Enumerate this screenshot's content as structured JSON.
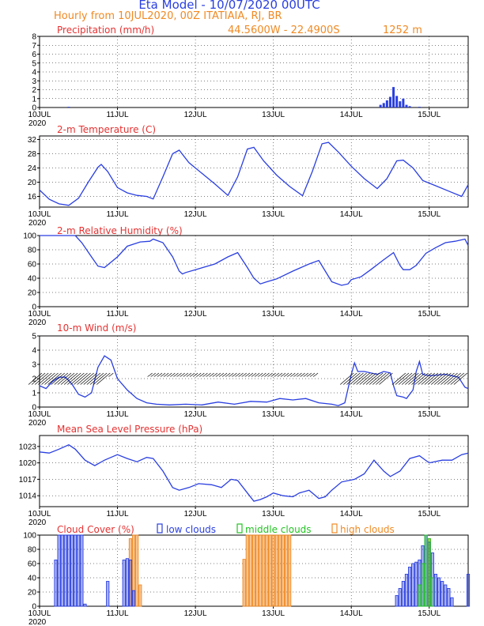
{
  "header": {
    "model_title": "Eta Model - 10/07/2020 00UTC",
    "subtitle": "Hourly from 10JUL2020, 00Z  ITATIAIA, RJ, BR",
    "coords": "44.5600W - 22.4900S",
    "elevation": "1252  m"
  },
  "colors": {
    "blue": "#2a3fe0",
    "red": "#e53232",
    "orange": "#f08a24",
    "green": "#22c322",
    "navy": "#1c2f8a"
  },
  "x_axis": {
    "day_labels": [
      "10JUL",
      "11JUL",
      "12JUL",
      "13JUL",
      "14JUL",
      "15JUL"
    ],
    "year_label": "2020",
    "hours_range": [
      0,
      132
    ]
  },
  "chart_data": [
    {
      "id": "precip",
      "type": "bar",
      "title": "Precipitation (mm/h)",
      "ylim": [
        0,
        8
      ],
      "yticks": [
        0,
        1,
        2,
        3,
        4,
        5,
        6,
        7,
        8
      ],
      "hours": [
        9,
        105,
        106,
        107,
        108,
        109,
        110,
        111,
        112,
        113,
        114,
        117
      ],
      "values": [
        0.08,
        0.3,
        0.5,
        0.8,
        1.2,
        2.3,
        1.3,
        0.7,
        1.0,
        0.3,
        0.15,
        0.08
      ]
    },
    {
      "id": "temp",
      "type": "line",
      "title": "2-m Temperature (C)",
      "ylim": [
        13,
        33
      ],
      "yticks": [
        16,
        20,
        24,
        28,
        32
      ],
      "points": [
        [
          0,
          17.8
        ],
        [
          3,
          15.2
        ],
        [
          6,
          13.9
        ],
        [
          9,
          13.5
        ],
        [
          12,
          15.5
        ],
        [
          15,
          20
        ],
        [
          18,
          24.2
        ],
        [
          19,
          25
        ],
        [
          21,
          23
        ],
        [
          24,
          18.5
        ],
        [
          27,
          17
        ],
        [
          30,
          16.3
        ],
        [
          33,
          16
        ],
        [
          35,
          15.3
        ],
        [
          38,
          21.5
        ],
        [
          41,
          28
        ],
        [
          43,
          29
        ],
        [
          46,
          25.5
        ],
        [
          50,
          22.5
        ],
        [
          54,
          19.5
        ],
        [
          58,
          16.3
        ],
        [
          61,
          21.5
        ],
        [
          64,
          29.3
        ],
        [
          66,
          29.8
        ],
        [
          69,
          26
        ],
        [
          73,
          22
        ],
        [
          77,
          18.8
        ],
        [
          81,
          16.2
        ],
        [
          84,
          23
        ],
        [
          87,
          30.8
        ],
        [
          89,
          31.2
        ],
        [
          92,
          28.5
        ],
        [
          96,
          24.5
        ],
        [
          100,
          21
        ],
        [
          104,
          18.2
        ],
        [
          107,
          21
        ],
        [
          110,
          26
        ],
        [
          112,
          26.2
        ],
        [
          115,
          24
        ],
        [
          118,
          20.5
        ],
        [
          122,
          19
        ],
        [
          126,
          17.5
        ],
        [
          130,
          16
        ],
        [
          132,
          19.3
        ]
      ]
    },
    {
      "id": "rh",
      "type": "line",
      "title": "2-m Relative Humidity (%)",
      "ylim": [
        0,
        100
      ],
      "yticks": [
        0,
        20,
        40,
        60,
        80,
        100
      ],
      "points": [
        [
          0,
          100
        ],
        [
          11,
          100
        ],
        [
          13,
          90
        ],
        [
          16,
          70
        ],
        [
          18,
          57
        ],
        [
          20,
          55
        ],
        [
          24,
          70
        ],
        [
          27,
          85
        ],
        [
          31,
          91
        ],
        [
          34,
          92
        ],
        [
          35,
          95
        ],
        [
          38,
          90
        ],
        [
          41,
          70
        ],
        [
          43,
          50
        ],
        [
          44,
          46
        ],
        [
          45,
          48
        ],
        [
          48,
          52
        ],
        [
          54,
          60
        ],
        [
          58,
          70
        ],
        [
          61,
          76
        ],
        [
          64,
          55
        ],
        [
          66,
          40
        ],
        [
          68,
          32
        ],
        [
          70,
          35
        ],
        [
          73,
          39
        ],
        [
          78,
          50
        ],
        [
          83,
          60
        ],
        [
          86,
          65
        ],
        [
          88,
          50
        ],
        [
          90,
          35
        ],
        [
          93,
          30
        ],
        [
          95,
          32
        ],
        [
          96,
          38
        ],
        [
          99,
          42
        ],
        [
          102,
          52
        ],
        [
          106,
          66
        ],
        [
          109,
          76
        ],
        [
          111,
          58
        ],
        [
          112,
          52
        ],
        [
          114,
          52
        ],
        [
          116,
          58
        ],
        [
          119,
          75
        ],
        [
          122,
          83
        ],
        [
          125,
          90
        ],
        [
          128,
          92
        ],
        [
          131,
          95
        ],
        [
          132,
          86
        ]
      ]
    },
    {
      "id": "wind",
      "type": "line",
      "title": "10-m Wind (m/s)",
      "ylim": [
        0,
        5
      ],
      "yticks": [
        0,
        1,
        2,
        3,
        4,
        5
      ],
      "points": [
        [
          0,
          1.5
        ],
        [
          2,
          1.3
        ],
        [
          4,
          1.8
        ],
        [
          6,
          2.1
        ],
        [
          8,
          2.1
        ],
        [
          10,
          1.6
        ],
        [
          12,
          0.9
        ],
        [
          14,
          0.7
        ],
        [
          16,
          1.0
        ],
        [
          18,
          2.8
        ],
        [
          20,
          3.6
        ],
        [
          22,
          3.3
        ],
        [
          24,
          2.0
        ],
        [
          27,
          1.2
        ],
        [
          30,
          0.6
        ],
        [
          33,
          0.3
        ],
        [
          36,
          0.2
        ],
        [
          40,
          0.15
        ],
        [
          45,
          0.2
        ],
        [
          50,
          0.15
        ],
        [
          55,
          0.35
        ],
        [
          60,
          0.2
        ],
        [
          65,
          0.4
        ],
        [
          70,
          0.35
        ],
        [
          74,
          0.6
        ],
        [
          78,
          0.5
        ],
        [
          82,
          0.6
        ],
        [
          86,
          0.3
        ],
        [
          90,
          0.2
        ],
        [
          92,
          0.1
        ],
        [
          94,
          0.3
        ],
        [
          96,
          2.3
        ],
        [
          97,
          3.1
        ],
        [
          98,
          2.5
        ],
        [
          100,
          2.5
        ],
        [
          104,
          2.3
        ],
        [
          106,
          2.5
        ],
        [
          108,
          2.4
        ],
        [
          109,
          1.5
        ],
        [
          110,
          0.8
        ],
        [
          112,
          0.7
        ],
        [
          113,
          0.6
        ],
        [
          115,
          1.2
        ],
        [
          116,
          2.5
        ],
        [
          117,
          3.2
        ],
        [
          118,
          2.3
        ],
        [
          120,
          2.2
        ],
        [
          125,
          2.3
        ],
        [
          129,
          2.1
        ],
        [
          131,
          1.4
        ],
        [
          132,
          1.3
        ]
      ]
    },
    {
      "id": "mslp",
      "type": "line",
      "title": "Mean Sea Level Pressure (hPa)",
      "ylim": [
        1012,
        1025
      ],
      "yticks": [
        1014,
        1017,
        1020,
        1023
      ],
      "points": [
        [
          0,
          1022
        ],
        [
          3,
          1021.8
        ],
        [
          6,
          1022.5
        ],
        [
          9,
          1023.3
        ],
        [
          11,
          1022.5
        ],
        [
          14,
          1020.5
        ],
        [
          17,
          1019.5
        ],
        [
          20,
          1020.5
        ],
        [
          24,
          1021.5
        ],
        [
          27,
          1020.8
        ],
        [
          30,
          1020.2
        ],
        [
          33,
          1021
        ],
        [
          35,
          1020.8
        ],
        [
          38,
          1018.5
        ],
        [
          41,
          1015.5
        ],
        [
          43,
          1015
        ],
        [
          46,
          1015.5
        ],
        [
          49,
          1016.2
        ],
        [
          53,
          1016
        ],
        [
          56,
          1015.5
        ],
        [
          59,
          1017
        ],
        [
          61,
          1016.8
        ],
        [
          64,
          1014.5
        ],
        [
          66,
          1013
        ],
        [
          68,
          1013.3
        ],
        [
          70,
          1013.8
        ],
        [
          72,
          1014.5
        ],
        [
          75,
          1014
        ],
        [
          78,
          1013.8
        ],
        [
          80,
          1014.5
        ],
        [
          83,
          1015
        ],
        [
          86,
          1013.5
        ],
        [
          88,
          1013.8
        ],
        [
          90,
          1015
        ],
        [
          93,
          1016.5
        ],
        [
          97,
          1017
        ],
        [
          100,
          1018
        ],
        [
          103,
          1020.5
        ],
        [
          106,
          1018.5
        ],
        [
          108,
          1017.5
        ],
        [
          111,
          1018.5
        ],
        [
          114,
          1020.8
        ],
        [
          117,
          1021.3
        ],
        [
          120,
          1020
        ],
        [
          124,
          1020.5
        ],
        [
          127,
          1020.5
        ],
        [
          130,
          1021.5
        ],
        [
          132,
          1021.8
        ]
      ]
    },
    {
      "id": "cloud",
      "type": "bar",
      "title": "Cloud Cover (%)",
      "ylim": [
        0,
        100
      ],
      "yticks": [
        0,
        20,
        40,
        60,
        80,
        100
      ],
      "legend": [
        "low clouds",
        "middle clouds",
        "high clouds"
      ],
      "low": {
        "hours": [
          5,
          6,
          7,
          8,
          9,
          10,
          11,
          12,
          13,
          14,
          21,
          26,
          27,
          28,
          29,
          110,
          111,
          112,
          113,
          114,
          115,
          116,
          117,
          118,
          119,
          120,
          121,
          122,
          123,
          124,
          125,
          126,
          127,
          132
        ],
        "values": [
          65,
          100,
          100,
          100,
          100,
          100,
          100,
          100,
          100,
          3,
          35,
          65,
          67,
          65,
          22,
          15,
          25,
          35,
          45,
          55,
          60,
          62,
          65,
          85,
          100,
          90,
          75,
          45,
          40,
          35,
          30,
          25,
          12,
          45
        ]
      },
      "mid": {
        "hours": [
          117,
          118,
          119,
          120,
          121
        ],
        "values": [
          30,
          60,
          100,
          95,
          40
        ]
      },
      "high": {
        "hours": [
          28,
          29,
          30,
          31,
          63,
          64,
          65,
          66,
          67,
          68,
          69,
          70,
          71,
          72,
          73,
          74,
          75,
          76,
          77,
          120
        ],
        "values": [
          95,
          100,
          100,
          30,
          66,
          100,
          100,
          100,
          100,
          100,
          100,
          100,
          100,
          100,
          100,
          100,
          100,
          100,
          100,
          95
        ]
      }
    }
  ]
}
